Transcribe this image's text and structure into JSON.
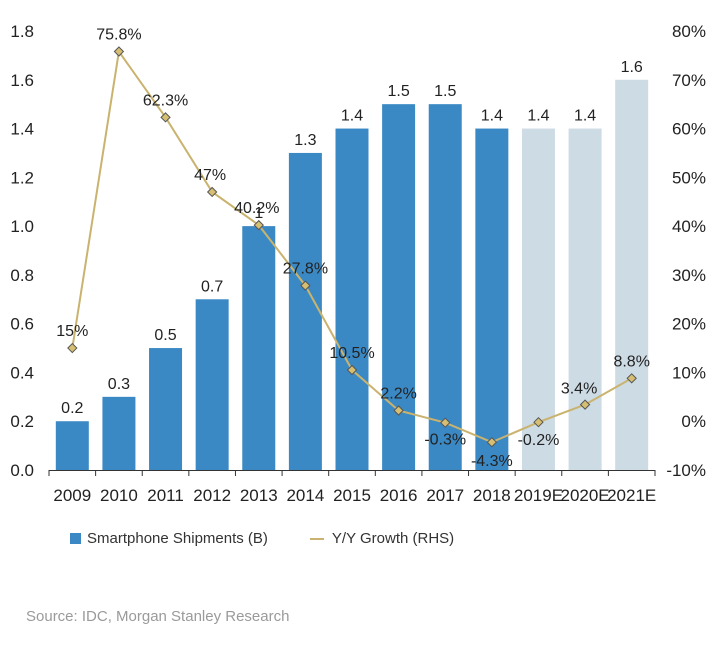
{
  "chart_data": {
    "type": "bar",
    "categories": [
      "2009",
      "2010",
      "2011",
      "2012",
      "2013",
      "2014",
      "2015",
      "2016",
      "2017",
      "2018",
      "2019E",
      "2020E",
      "2021E"
    ],
    "series": [
      {
        "name": "Smartphone Shipments (B)",
        "type": "bar",
        "axis": "left",
        "values": [
          0.2,
          0.3,
          0.5,
          0.7,
          1.0,
          1.3,
          1.4,
          1.5,
          1.5,
          1.4,
          1.4,
          1.4,
          1.6
        ],
        "labels": [
          "0.2",
          "0.3",
          "0.5",
          "0.7",
          "1",
          "1.3",
          "1.4",
          "1.5",
          "1.5",
          "1.4",
          "1.4",
          "1.4",
          "1.6"
        ],
        "estimate_flags": [
          false,
          false,
          false,
          false,
          false,
          false,
          false,
          false,
          false,
          false,
          true,
          true,
          true
        ]
      },
      {
        "name": "Y/Y Growth (RHS)",
        "type": "line",
        "axis": "right",
        "values": [
          15,
          75.8,
          62.3,
          47,
          40.2,
          27.8,
          10.5,
          2.2,
          -0.3,
          -4.3,
          -0.2,
          3.4,
          8.8
        ],
        "labels": [
          "15%",
          "75.8%",
          "62.3%",
          "47%",
          "40.2%",
          "27.8%",
          "10.5%",
          "2.2%",
          "-0.3%",
          "-4.3%",
          "-0.2%",
          "3.4%",
          "8.8%"
        ]
      }
    ],
    "y_left": {
      "min": 0,
      "max": 1.8,
      "ticks": [
        "0.0",
        "0.2",
        "0.4",
        "0.6",
        "0.8",
        "1.0",
        "1.2",
        "1.4",
        "1.6",
        "1.8"
      ]
    },
    "y_right": {
      "min": -10,
      "max": 80,
      "ticks": [
        "-10%",
        "0%",
        "10%",
        "20%",
        "30%",
        "40%",
        "50%",
        "60%",
        "70%",
        "80%"
      ]
    },
    "grid": false,
    "legend_position": "bottom-left",
    "colors": {
      "bar": "#3b89c4",
      "bar_estimate": "#cddbe4",
      "line": "#c9b36e",
      "marker": "#d6bf73",
      "marker_stroke": "#555555",
      "axis": "#333333"
    }
  },
  "legend": {
    "bar_label": "Smartphone Shipments (B)",
    "line_label": "Y/Y Growth (RHS)"
  },
  "source": "Source: IDC, Morgan Stanley Research"
}
